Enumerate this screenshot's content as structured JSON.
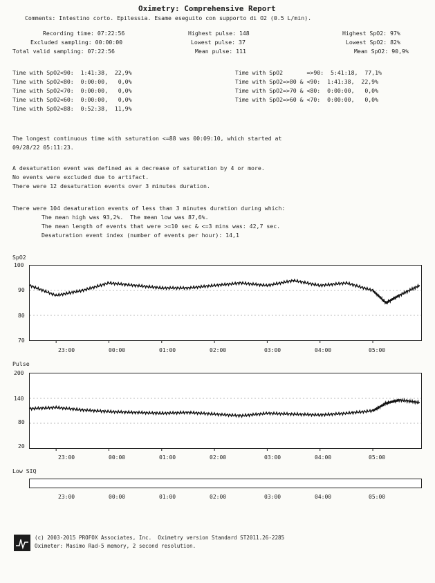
{
  "header": {
    "title": "Oximetry: Comprehensive Report",
    "comments": "Comments: Intestino corto. Epilessia. Esame eseguito con supporto di O2 (0.5 L/min).",
    "col1": [
      "Recording time: 07:22:56",
      "Excluded sampling: 00:00:00",
      "Total valid sampling: 07:22:56"
    ],
    "col2": [
      "Highest pulse: 148",
      "Lowest pulse: 37",
      "Mean pulse: 111"
    ],
    "col3": [
      "Highest SpO2: 97%",
      "Lowest SpO2: 82%",
      "Mean SpO2: 90,9%"
    ]
  },
  "time_with": {
    "left": [
      "Time with SpO2<90:  1:41:38,  22,9%",
      "Time with SpO2<80:  0:00:00,   0,0%",
      "Time with SpO2<70:  0:00:00,   0,0%",
      "Time with SpO2<60:  0:00:00,   0,0%",
      "Time with SpO2<88:  0:52:38,  11,9%"
    ],
    "right": [
      "Time with SpO2       =>90:  5:41:18,  77,1%",
      "Time with SpO2=>80 & <90:  1:41:38,  22,9%",
      "Time with SpO2=>70 & <80:  0:00:00,   0,0%",
      "Time with SpO2=>60 & <70:  0:00:00,   0,0%"
    ]
  },
  "paragraphs": {
    "p1": [
      "The longest continuous time with saturation <=88 was 00:09:10, which started at",
      "09/28/22 05:11:23."
    ],
    "p2": [
      "A desaturation event was defined as a decrease of saturation by 4 or more.",
      "No events were excluded due to artifact.",
      "There were 12 desaturation events over 3 minutes duration."
    ],
    "p3_first": "There were 104 desaturation events of less than 3 minutes duration during which:",
    "p3": [
      "The mean high was 93,2%.  The mean low was 87,6%.",
      "The mean length of events that were >=10 sec & <=3 mins was: 42,7 sec.",
      "Desaturation event index (number of events per hour): 14,1"
    ]
  },
  "charts": {
    "spo2": {
      "label": "SpO2",
      "yticks": [
        "100",
        "90",
        "80",
        "70"
      ],
      "xticks": [
        "23:00",
        "00:00",
        "01:00",
        "02:00",
        "03:00",
        "04:00",
        "05:00"
      ]
    },
    "pulse": {
      "label": "Pulse",
      "yticks": [
        "200",
        "140",
        "80",
        "20"
      ],
      "xticks": [
        "23:00",
        "00:00",
        "01:00",
        "02:00",
        "03:00",
        "04:00",
        "05:00"
      ]
    },
    "lowsiq": {
      "label": "Low SIQ",
      "xticks": [
        "23:00",
        "00:00",
        "01:00",
        "02:00",
        "03:00",
        "04:00",
        "05:00"
      ]
    }
  },
  "chart_data": [
    {
      "type": "line",
      "title": "SpO2",
      "x": [
        "22:30",
        "23:00",
        "23:30",
        "00:00",
        "00:30",
        "01:00",
        "01:30",
        "02:00",
        "02:30",
        "03:00",
        "03:30",
        "04:00",
        "04:30",
        "05:00",
        "05:15",
        "05:30",
        "05:53"
      ],
      "series": [
        {
          "values": [
            92,
            88,
            90,
            93,
            92,
            91,
            91,
            92,
            93,
            92,
            94,
            92,
            93,
            90,
            85,
            88,
            92
          ]
        }
      ],
      "ylim": [
        70,
        100
      ],
      "grid": true
    },
    {
      "type": "line",
      "title": "Pulse",
      "x": [
        "22:30",
        "23:00",
        "23:30",
        "00:00",
        "00:30",
        "01:00",
        "01:30",
        "02:00",
        "02:30",
        "03:00",
        "03:30",
        "04:00",
        "04:30",
        "05:00",
        "05:15",
        "05:30",
        "05:53"
      ],
      "series": [
        {
          "values": [
            115,
            118,
            112,
            108,
            106,
            104,
            106,
            102,
            98,
            104,
            102,
            100,
            104,
            110,
            128,
            136,
            130
          ]
        }
      ],
      "ylim": [
        20,
        200
      ],
      "grid": true
    }
  ],
  "footer": {
    "line1": "(c) 2003-2015 PROFOX Associates, Inc.  Oximetry version Standard ST2011.26-2285",
    "line2": "Oximeter: Masimo Rad-5 memory, 2 second resolution."
  }
}
